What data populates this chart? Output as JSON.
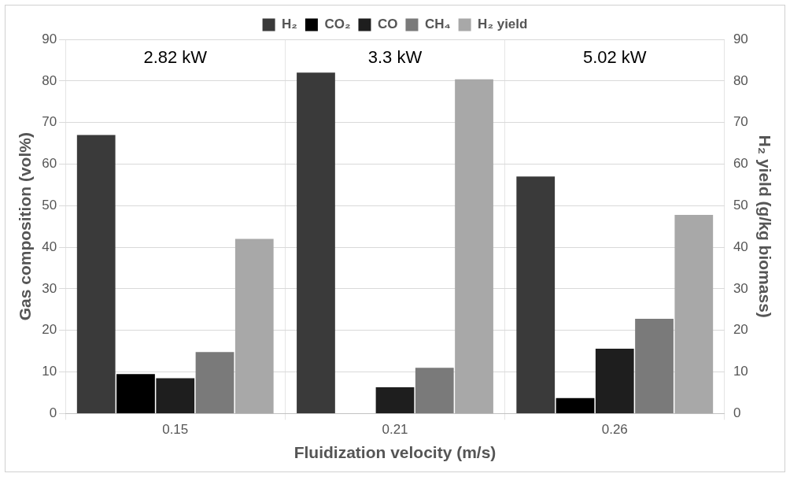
{
  "chart_data": {
    "type": "bar",
    "xlabel": "Fluidization velocity (m/s)",
    "ylabel": "Gas composition (vol%)",
    "y2label": "H₂ yield (g/kg biomass)",
    "categories": [
      "0.15",
      "0.21",
      "0.26"
    ],
    "series": [
      {
        "name": "H₂",
        "color": "#3a3a3a",
        "values": [
          67,
          82,
          57
        ]
      },
      {
        "name": "CO₂",
        "color": "#000000",
        "values": [
          9.5,
          0,
          3.7
        ]
      },
      {
        "name": "CO",
        "color": "#1e1e1e",
        "values": [
          8.5,
          6.3,
          15.6
        ]
      },
      {
        "name": "CH₄",
        "color": "#7a7a7a",
        "values": [
          14.8,
          11,
          22.8
        ]
      },
      {
        "name": "H₂ yield",
        "color": "#a8a8a8",
        "axis": "y2",
        "values": [
          42,
          80.4,
          47.8
        ]
      }
    ],
    "ylim": [
      0,
      90
    ],
    "yticks": [
      0,
      10,
      20,
      30,
      40,
      50,
      60,
      70,
      80,
      90
    ],
    "y2lim": [
      0,
      90
    ],
    "y2ticks": [
      0,
      10,
      20,
      30,
      40,
      50,
      60,
      70,
      80,
      90
    ],
    "annotations": [
      "2.82 kW",
      "3.3 kW",
      "5.02 kW"
    ],
    "grid": true,
    "legend": "top"
  }
}
